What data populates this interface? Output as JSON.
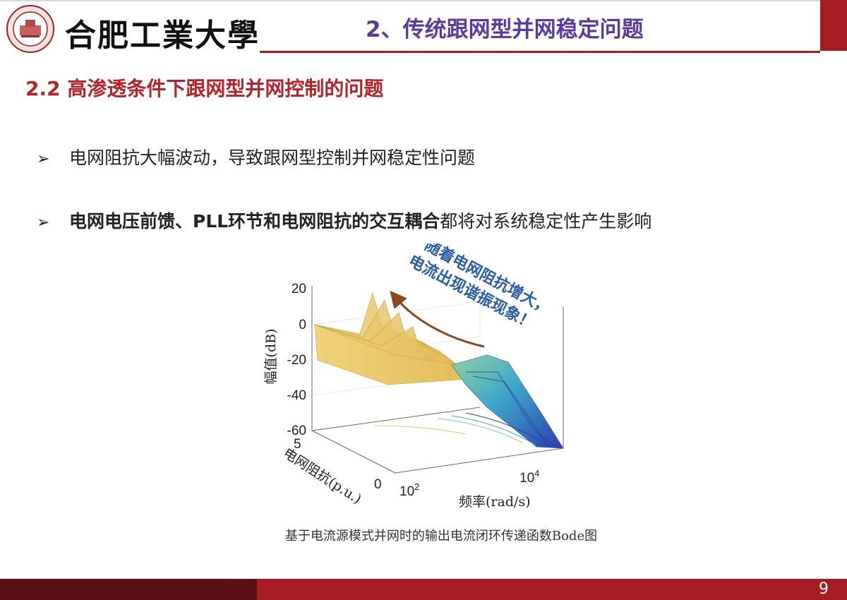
{
  "header": {
    "university": "合肥工業大學",
    "slide_title": "2、传统跟网型并网稳定问题"
  },
  "section": {
    "title": "2.2 高渗透条件下跟网型并网控制的问题"
  },
  "bullets": [
    {
      "marker": "➢",
      "text": "电网阻抗大幅波动，导致跟网型控制并网稳定性问题"
    },
    {
      "marker": "➢",
      "bold_text": "电网电压前馈、PLL环节和电网阻抗的交互耦合",
      "text": "都将对系统稳定性产生影响"
    }
  ],
  "figure": {
    "annotation_line1": "随着电网阻抗增大，",
    "annotation_line2": "电流出现谐振现象！",
    "z_label": "幅值(dB)",
    "z_ticks": [
      "20",
      "0",
      "-20",
      "-40",
      "-60"
    ],
    "y_label": "电网阻抗(p.u.)",
    "y_ticks": [
      "5",
      "0"
    ],
    "x_label": "频率(rad/s)",
    "x_tick_base": "10",
    "x_tick_exp": [
      "2",
      "4"
    ],
    "caption": "基于电流源模式并网时的输出电流闭环传递函数Bode图"
  },
  "footer": {
    "page_number": "9"
  },
  "colors": {
    "brand_red": "#a51d22",
    "dark_red": "#5a1014",
    "title_purple": "#5a3a9e",
    "section_red": "#b4232a",
    "annotation_blue": "#2a5ca8",
    "surface_yellow": "#e4c062"
  }
}
